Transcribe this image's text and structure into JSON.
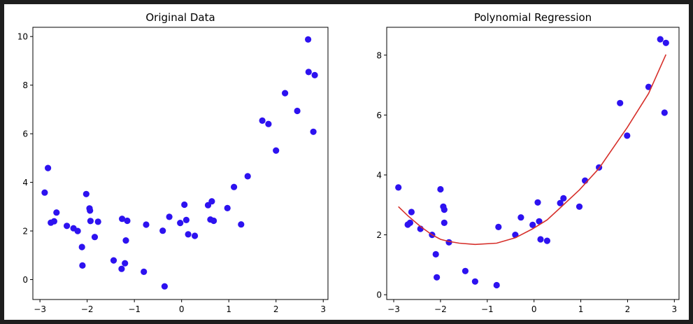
{
  "colors": {
    "points": "#2d12f0",
    "fit_line": "#d62f2a",
    "axes": "#000000"
  },
  "chart_data": [
    {
      "type": "scatter",
      "title": "Original Data",
      "xlabel": "",
      "ylabel": "",
      "xlim": [
        -3.15,
        3.1
      ],
      "ylim": [
        -0.82,
        10.38
      ],
      "xticks": [
        -3,
        -2,
        -1,
        0,
        1,
        2,
        3
      ],
      "yticks": [
        0,
        2,
        4,
        6,
        8,
        10
      ],
      "xtick_labels": [
        "−3",
        "−2",
        "−1",
        "0",
        "1",
        "2",
        "3"
      ],
      "ytick_labels": [
        "0",
        "2",
        "4",
        "6",
        "8",
        "10"
      ],
      "grid": false,
      "legend": "none",
      "series": [
        {
          "kind": "scatter",
          "points": [
            [
              -2.9,
              3.58
            ],
            [
              -2.83,
              4.59
            ],
            [
              -2.77,
              2.34
            ],
            [
              -2.7,
              2.4
            ],
            [
              -2.65,
              2.76
            ],
            [
              -2.43,
              2.21
            ],
            [
              -2.29,
              2.11
            ],
            [
              -2.2,
              2.0
            ],
            [
              -2.11,
              1.34
            ],
            [
              -2.1,
              0.58
            ],
            [
              -2.02,
              3.52
            ],
            [
              -1.95,
              2.93
            ],
            [
              -1.94,
              2.84
            ],
            [
              -1.93,
              2.41
            ],
            [
              -1.84,
              1.75
            ],
            [
              -1.77,
              2.38
            ],
            [
              -1.44,
              0.79
            ],
            [
              -1.27,
              0.44
            ],
            [
              -1.26,
              2.5
            ],
            [
              -1.2,
              0.67
            ],
            [
              -1.18,
              1.61
            ],
            [
              -1.15,
              2.42
            ],
            [
              -0.8,
              0.32
            ],
            [
              -0.75,
              2.26
            ],
            [
              -0.4,
              2.01
            ],
            [
              -0.36,
              -0.28
            ],
            [
              -0.26,
              2.58
            ],
            [
              -0.03,
              2.33
            ],
            [
              0.06,
              3.08
            ],
            [
              0.1,
              2.45
            ],
            [
              0.14,
              1.86
            ],
            [
              0.28,
              1.8
            ],
            [
              0.56,
              3.06
            ],
            [
              0.61,
              2.47
            ],
            [
              0.64,
              3.22
            ],
            [
              0.68,
              2.42
            ],
            [
              0.97,
              2.94
            ],
            [
              1.11,
              3.81
            ],
            [
              1.26,
              2.27
            ],
            [
              1.4,
              4.25
            ],
            [
              1.71,
              6.54
            ],
            [
              1.84,
              6.4
            ],
            [
              2.0,
              5.31
            ],
            [
              2.19,
              7.67
            ],
            [
              2.45,
              6.94
            ],
            [
              2.68,
              9.88
            ],
            [
              2.69,
              8.54
            ],
            [
              2.79,
              6.08
            ],
            [
              2.82,
              8.41
            ]
          ]
        }
      ]
    },
    {
      "type": "scatter",
      "title": "Polynomial Regression",
      "xlabel": "",
      "ylabel": "",
      "xlim": [
        -3.15,
        3.1
      ],
      "ylim": [
        -0.16,
        8.93
      ],
      "xticks": [
        -3,
        -2,
        -1,
        0,
        1,
        2,
        3
      ],
      "yticks": [
        0,
        2,
        4,
        6,
        8
      ],
      "xtick_labels": [
        "−3",
        "−2",
        "−1",
        "0",
        "1",
        "2",
        "3"
      ],
      "ytick_labels": [
        "0",
        "2",
        "4",
        "6",
        "8"
      ],
      "grid": false,
      "legend": "none",
      "series": [
        {
          "kind": "scatter",
          "points": [
            [
              -2.9,
              3.58
            ],
            [
              -2.7,
              2.34
            ],
            [
              -2.65,
              2.4
            ],
            [
              -2.62,
              2.76
            ],
            [
              -2.43,
              2.2
            ],
            [
              -2.18,
              2.0
            ],
            [
              -2.1,
              1.35
            ],
            [
              -2.08,
              0.58
            ],
            [
              -2.0,
              3.52
            ],
            [
              -1.94,
              2.94
            ],
            [
              -1.92,
              2.84
            ],
            [
              -1.92,
              2.4
            ],
            [
              -1.82,
              1.75
            ],
            [
              -1.47,
              0.79
            ],
            [
              -1.26,
              0.44
            ],
            [
              -0.8,
              0.32
            ],
            [
              -0.76,
              2.26
            ],
            [
              -0.4,
              2.0
            ],
            [
              -0.28,
              2.58
            ],
            [
              -0.03,
              2.33
            ],
            [
              0.08,
              3.08
            ],
            [
              0.11,
              2.45
            ],
            [
              0.14,
              1.85
            ],
            [
              0.28,
              1.8
            ],
            [
              0.56,
              3.06
            ],
            [
              0.63,
              3.22
            ],
            [
              0.97,
              2.94
            ],
            [
              1.09,
              3.81
            ],
            [
              1.39,
              4.25
            ],
            [
              1.84,
              6.4
            ],
            [
              1.99,
              5.31
            ],
            [
              2.45,
              6.94
            ],
            [
              2.7,
              8.53
            ],
            [
              2.79,
              6.08
            ],
            [
              2.82,
              8.41
            ]
          ]
        },
        {
          "kind": "line",
          "points": [
            [
              -2.9,
              2.94
            ],
            [
              -2.7,
              2.64
            ],
            [
              -2.43,
              2.28
            ],
            [
              -2.18,
              2.0
            ],
            [
              -2.0,
              1.85
            ],
            [
              -1.82,
              1.78
            ],
            [
              -1.6,
              1.72
            ],
            [
              -1.26,
              1.68
            ],
            [
              -0.8,
              1.72
            ],
            [
              -0.4,
              1.9
            ],
            [
              -0.03,
              2.2
            ],
            [
              0.28,
              2.5
            ],
            [
              0.56,
              2.9
            ],
            [
              0.97,
              3.5
            ],
            [
              1.39,
              4.22
            ],
            [
              1.84,
              5.24
            ],
            [
              1.99,
              5.58
            ],
            [
              2.45,
              6.72
            ],
            [
              2.82,
              8.02
            ]
          ]
        }
      ]
    }
  ]
}
